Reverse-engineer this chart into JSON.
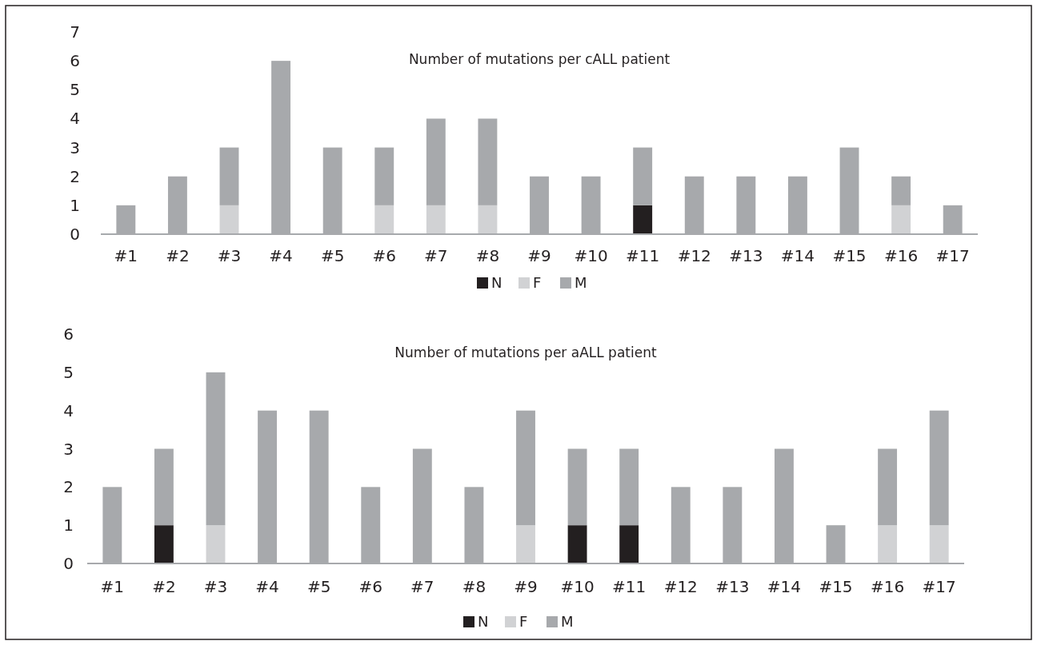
{
  "chart_data": [
    {
      "type": "bar",
      "title": "Number of mutations per cALL patient",
      "stacked": true,
      "legend": "bottom",
      "grid": false,
      "ylim": [
        0,
        7
      ],
      "yticks": [
        0,
        1,
        2,
        3,
        4,
        5,
        6,
        7
      ],
      "categories": [
        "#1",
        "#2",
        "#3",
        "#4",
        "#5",
        "#6",
        "#7",
        "#8",
        "#9",
        "#10",
        "#11",
        "#12",
        "#13",
        "#14",
        "#15",
        "#16",
        "#17"
      ],
      "series": [
        {
          "name": "N",
          "color": "#231f20",
          "values": [
            0,
            0,
            0,
            0,
            0,
            0,
            0,
            0,
            0,
            0,
            1,
            0,
            0,
            0,
            0,
            0,
            0
          ]
        },
        {
          "name": "F",
          "color": "#d1d2d4",
          "values": [
            0,
            0,
            1,
            0,
            0,
            1,
            1,
            1,
            0,
            0,
            0,
            0,
            0,
            0,
            0,
            1,
            0
          ]
        },
        {
          "name": "M",
          "color": "#a7a9ac",
          "values": [
            1,
            2,
            2,
            6,
            3,
            2,
            3,
            3,
            2,
            2,
            2,
            2,
            2,
            2,
            3,
            1,
            1
          ]
        }
      ]
    },
    {
      "type": "bar",
      "title": "Number of mutations per aALL patient",
      "stacked": true,
      "legend": "bottom",
      "grid": false,
      "ylim": [
        0,
        6
      ],
      "yticks": [
        0,
        1,
        2,
        3,
        4,
        5,
        6
      ],
      "categories": [
        "#1",
        "#2",
        "#3",
        "#4",
        "#5",
        "#6",
        "#7",
        "#8",
        "#9",
        "#10",
        "#11",
        "#12",
        "#13",
        "#14",
        "#15",
        "#16",
        "#17"
      ],
      "series": [
        {
          "name": "N",
          "color": "#231f20",
          "values": [
            0,
            1,
            0,
            0,
            0,
            0,
            0,
            0,
            0,
            1,
            1,
            0,
            0,
            0,
            0,
            0,
            0
          ]
        },
        {
          "name": "F",
          "color": "#d1d2d4",
          "values": [
            0,
            0,
            1,
            0,
            0,
            0,
            0,
            0,
            1,
            0,
            0,
            0,
            0,
            0,
            0,
            1,
            1
          ]
        },
        {
          "name": "M",
          "color": "#a7a9ac",
          "values": [
            2,
            2,
            4,
            4,
            4,
            2,
            3,
            2,
            3,
            2,
            2,
            2,
            2,
            3,
            1,
            2,
            3
          ]
        }
      ]
    }
  ]
}
